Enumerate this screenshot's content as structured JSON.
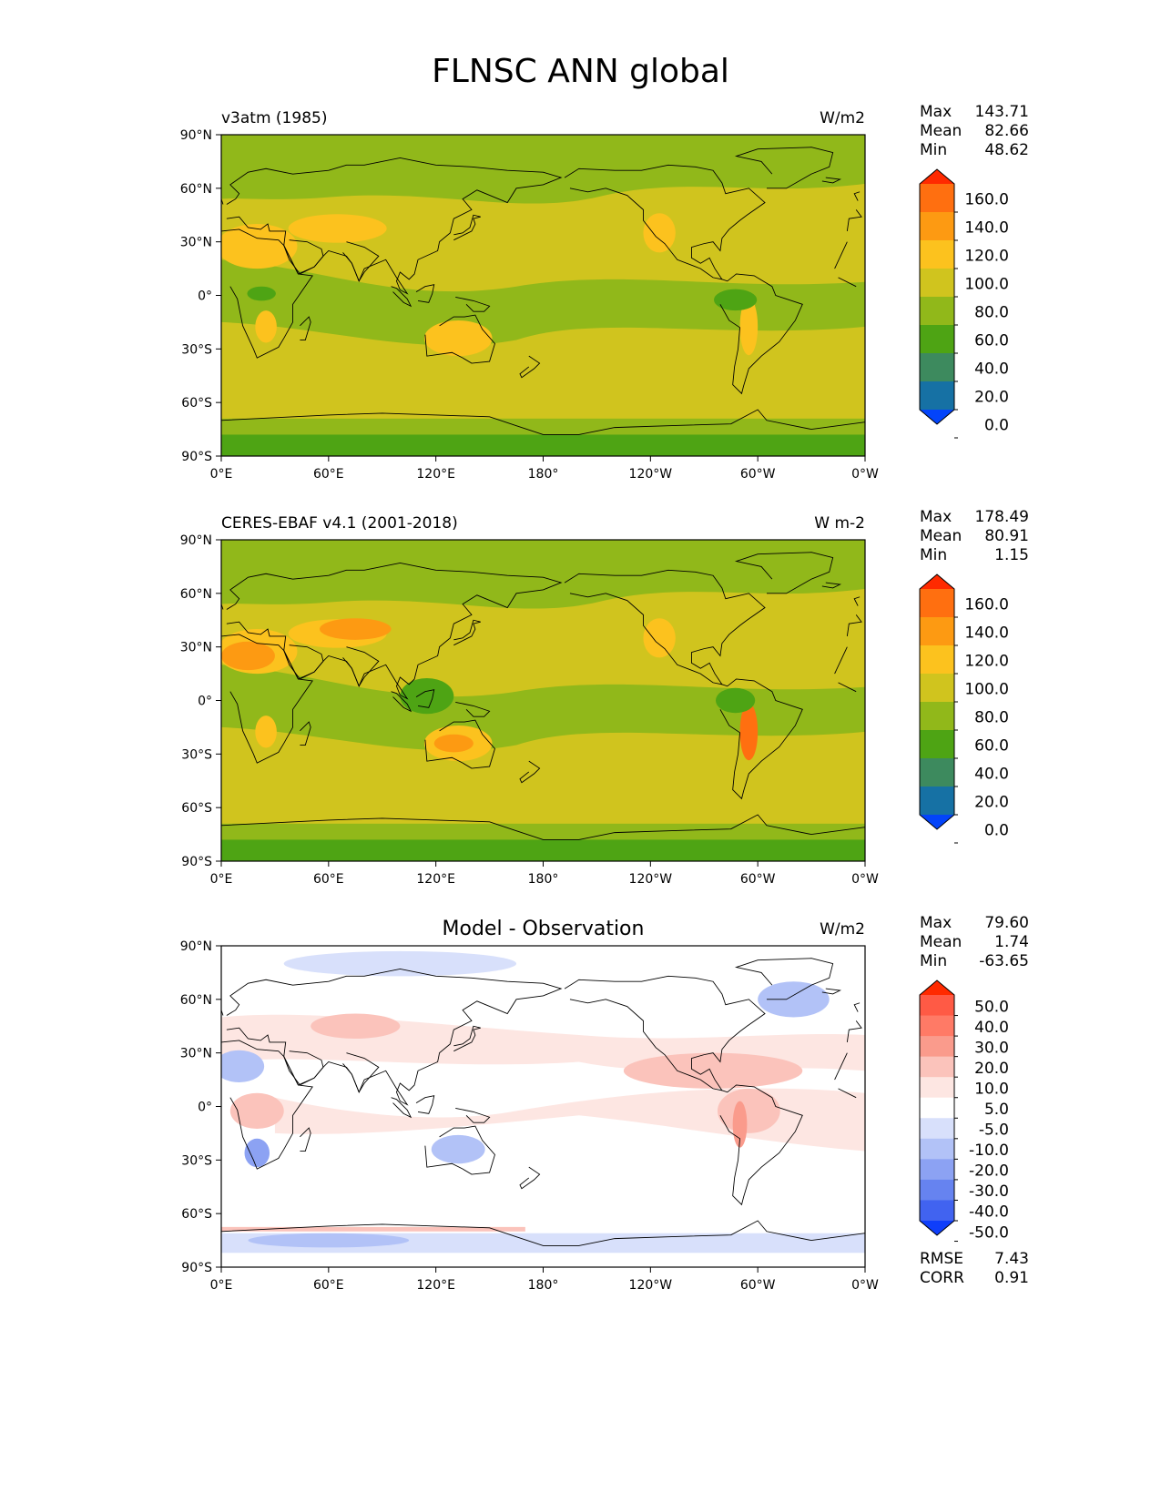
{
  "page_title": "FLNSC ANN global",
  "x_ticks": [
    "0°E",
    "60°E",
    "120°E",
    "180°",
    "120°W",
    "60°W",
    "0°W"
  ],
  "y_ticks": [
    "90°N",
    "60°N",
    "30°N",
    "0°",
    "30°S",
    "60°S",
    "90°S"
  ],
  "stat_labels": {
    "max": "Max",
    "mean": "Mean",
    "min": "Min",
    "rmse": "RMSE",
    "corr": "CORR"
  },
  "chart_data": [
    {
      "type": "heatmap",
      "title": "v3atm (1985)",
      "units": "W/m2",
      "x_range": [
        0,
        360
      ],
      "y_range": [
        -90,
        90
      ],
      "stats": {
        "max": "143.71",
        "mean": "82.66",
        "min": "48.62"
      },
      "colorbar": {
        "labels": [
          "160.0",
          "140.0",
          "120.0",
          "100.0",
          "80.0",
          "60.0",
          "40.0",
          "20.0",
          "0.0"
        ],
        "colors": [
          "#ff2a00",
          "#ff6f10",
          "#fd9a12",
          "#fcc21e",
          "#d0c41e",
          "#91b81a",
          "#4ea414",
          "#3d8a5e",
          "#1671a4",
          "#0344fa"
        ]
      },
      "field_description_color_regions": {
        "background": "#d0c41e",
        "tropics": "#91b81a",
        "polar": "#91b81a",
        "deserts": "#fcc21e"
      }
    },
    {
      "type": "heatmap",
      "title": "CERES-EBAF v4.1 (2001-2018)",
      "units": "W m-2",
      "x_range": [
        0,
        360
      ],
      "y_range": [
        -90,
        90
      ],
      "stats": {
        "max": "178.49",
        "mean": "80.91",
        "min": "1.15"
      },
      "colorbar": {
        "labels": [
          "160.0",
          "140.0",
          "120.0",
          "100.0",
          "80.0",
          "60.0",
          "40.0",
          "20.0",
          "0.0"
        ],
        "colors": [
          "#ff2a00",
          "#ff6f10",
          "#fd9a12",
          "#fcc21e",
          "#d0c41e",
          "#91b81a",
          "#4ea414",
          "#3d8a5e",
          "#1671a4",
          "#0344fa"
        ]
      }
    },
    {
      "type": "heatmap",
      "title": "Model - Observation",
      "units": "W/m2",
      "x_range": [
        0,
        360
      ],
      "y_range": [
        -90,
        90
      ],
      "stats": {
        "max": "79.60",
        "mean": "1.74",
        "min": "-63.65",
        "rmse": "7.43",
        "corr": "0.91"
      },
      "colorbar": {
        "labels": [
          "50.0",
          "40.0",
          "30.0",
          "20.0",
          "10.0",
          "5.0",
          "-5.0",
          "-10.0",
          "-20.0",
          "-30.0",
          "-40.0",
          "-50.0"
        ],
        "colors": [
          "#ff2a00",
          "#ff5a45",
          "#ff7a66",
          "#fa9b8c",
          "#fbc3bb",
          "#fde6e2",
          "#ffffff",
          "#d8e0fb",
          "#b2c2f7",
          "#8ca2f3",
          "#6683f0",
          "#4163f0",
          "#0f3efa"
        ]
      }
    }
  ]
}
